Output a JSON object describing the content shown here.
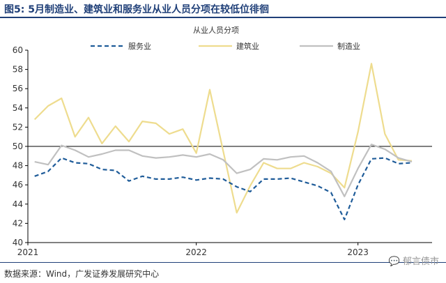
{
  "title": "图5:  5月制造业、建筑业和服务业从业人员分项在较低位徘徊",
  "source": "数据来源：Wind，广发证券发展研究中心",
  "watermark": "郁言债市",
  "chart_data": {
    "type": "line",
    "subtitle": "从业人员分项",
    "x_tick_labels": [
      "2021",
      "2022",
      "2023"
    ],
    "yticks": [
      40,
      42,
      44,
      46,
      48,
      50,
      52,
      54,
      56,
      58,
      60
    ],
    "ylim": [
      40,
      60
    ],
    "reference_line": 50,
    "x": [
      "2021-01",
      "2021-02",
      "2021-03",
      "2021-04",
      "2021-05",
      "2021-06",
      "2021-07",
      "2021-08",
      "2021-09",
      "2021-10",
      "2021-11",
      "2021-12",
      "2022-01",
      "2022-02",
      "2022-03",
      "2022-04",
      "2022-05",
      "2022-06",
      "2022-07",
      "2022-08",
      "2022-09",
      "2022-10",
      "2022-11",
      "2022-12",
      "2023-01",
      "2023-02",
      "2023-03",
      "2023-04",
      "2023-05"
    ],
    "series": [
      {
        "name": "服务业",
        "color": "#1f5c99",
        "dash": "dashed",
        "values": [
          46.9,
          47.4,
          48.8,
          48.3,
          48.2,
          47.6,
          47.5,
          46.4,
          46.9,
          46.6,
          46.6,
          46.8,
          46.5,
          46.7,
          46.6,
          45.8,
          45.3,
          46.6,
          46.6,
          46.7,
          46.3,
          45.9,
          45.2,
          42.4,
          46.0,
          48.7,
          48.8,
          48.2,
          48.3
        ]
      },
      {
        "name": "建筑业",
        "color": "#eedc8e",
        "dash": "solid",
        "values": [
          52.8,
          54.2,
          55.0,
          51.0,
          53.0,
          50.3,
          52.1,
          50.5,
          52.6,
          52.4,
          51.3,
          51.8,
          49.3,
          55.9,
          49.5,
          43.1,
          45.9,
          48.3,
          47.7,
          47.7,
          48.3,
          47.9,
          47.2,
          45.7,
          51.5,
          58.6,
          51.3,
          48.6,
          48.5
        ]
      },
      {
        "name": "制造业",
        "color": "#c0c0c0",
        "dash": "solid",
        "values": [
          48.4,
          48.1,
          50.1,
          49.6,
          48.9,
          49.2,
          49.6,
          49.6,
          49.0,
          48.8,
          48.9,
          49.1,
          48.9,
          49.2,
          48.6,
          47.2,
          47.6,
          48.7,
          48.6,
          48.9,
          49.0,
          48.3,
          47.4,
          44.8,
          47.7,
          50.2,
          49.7,
          48.8,
          48.4
        ]
      }
    ]
  }
}
